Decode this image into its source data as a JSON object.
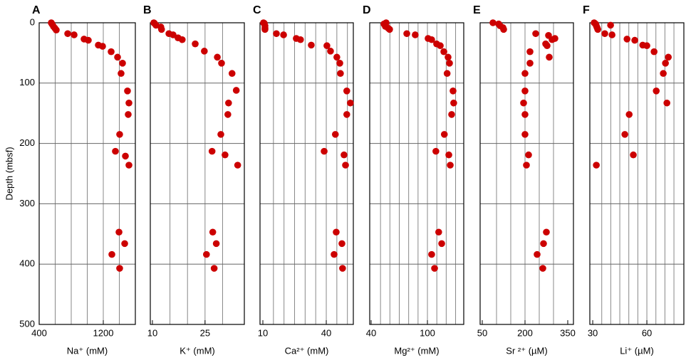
{
  "chart_data": [
    {
      "type": "scatter",
      "label": "A",
      "xlabel": "Na⁺ (mM)",
      "ylabel": "Depth (mbsf)",
      "color": "#cc0000",
      "y_inverted": true,
      "xlim": [
        400,
        1600
      ],
      "xticks": [
        400,
        1200
      ],
      "xgrid": [
        600,
        800,
        1000,
        1200,
        1400
      ],
      "ylim": [
        0,
        500
      ],
      "yticks": [
        0,
        100,
        200,
        300,
        400,
        500
      ],
      "x": [
        551,
        560,
        578,
        596,
        613,
        756,
        836,
        960,
        1013,
        1138,
        1191,
        1298,
        1378,
        1440,
        1422,
        1502,
        1520,
        1511,
        1404,
        1351,
        1476,
        1520,
        1396,
        1467,
        1307,
        1404
      ],
      "values": [
        0,
        2,
        6,
        9,
        12,
        18,
        20,
        27,
        29,
        37,
        39,
        48,
        57,
        67,
        84,
        113,
        133,
        152,
        185,
        213,
        221,
        236,
        347,
        366,
        384,
        407
      ]
    },
    {
      "type": "scatter",
      "label": "B",
      "xlabel": "K⁺ (mM)",
      "color": "#cc0000",
      "y_inverted": true,
      "xlim": [
        9.4,
        36.2
      ],
      "xticks": [
        10,
        25
      ],
      "xgrid": [
        15,
        20,
        25,
        30
      ],
      "ylim": [
        0,
        500
      ],
      "yticks": [
        0,
        100,
        200,
        300,
        400,
        500
      ],
      "x": [
        10.4,
        10.6,
        11.0,
        12.4,
        12.6,
        14.7,
        15.9,
        17.3,
        18.5,
        22.2,
        24.8,
        28.5,
        29.7,
        32.7,
        33.9,
        31.7,
        31.5,
        29.5,
        27.0,
        30.7,
        34.3,
        27.2,
        28.2,
        25.4,
        27.6
      ],
      "values": [
        0,
        1,
        4,
        7,
        11,
        18,
        20,
        25,
        28,
        35,
        47,
        57,
        67,
        84,
        112,
        133,
        152,
        185,
        213,
        219,
        236,
        347,
        366,
        384,
        407
      ]
    },
    {
      "type": "scatter",
      "label": "C",
      "xlabel": "Ca²⁺ (mM)",
      "color": "#cc0000",
      "y_inverted": true,
      "xlim": [
        8.65,
        52.8
      ],
      "xticks": [
        10,
        40
      ],
      "xgrid": [
        15,
        20,
        25,
        30,
        35,
        40,
        45,
        50
      ],
      "ylim": [
        0,
        500
      ],
      "yticks": [
        0,
        100,
        200,
        300,
        400,
        500
      ],
      "x": [
        10.3,
        10.7,
        11.0,
        11.0,
        11.0,
        16.4,
        19.8,
        25.8,
        27.8,
        32.9,
        40.3,
        42.0,
        45.0,
        46.4,
        46.7,
        49.7,
        51.4,
        49.7,
        44.3,
        39.0,
        48.4,
        49.1,
        44.7,
        47.4,
        43.7,
        47.7
      ],
      "values": [
        0,
        1,
        5,
        9,
        11,
        18,
        20,
        26,
        28,
        37,
        38,
        47,
        57,
        67,
        84,
        113,
        133,
        152,
        185,
        213,
        219,
        236,
        347,
        366,
        384,
        407
      ]
    },
    {
      "type": "scatter",
      "label": "D",
      "xlabel": "Mg²⁺ (mM)",
      "color": "#cc0000",
      "y_inverted": true,
      "xlim": [
        38.5,
        138.7
      ],
      "xticks": [
        40,
        100
      ],
      "xgrid": [
        50,
        60,
        70,
        80,
        90,
        100,
        110,
        120,
        130
      ],
      "ylim": [
        0,
        500
      ],
      "yticks": [
        0,
        100,
        200,
        300,
        400,
        500
      ],
      "x": [
        56,
        53.7,
        55.2,
        58.2,
        59.7,
        78,
        87,
        100.7,
        104.5,
        109.8,
        113.7,
        117.5,
        122,
        123.5,
        121,
        127.3,
        128,
        125.8,
        118,
        109,
        122.8,
        124.3,
        112,
        115.2,
        104.5,
        107.6
      ],
      "values": [
        0,
        2,
        6,
        9,
        11,
        18,
        20,
        26,
        28,
        35,
        38,
        48,
        57,
        67,
        84,
        113,
        133,
        152,
        185,
        213,
        219,
        236,
        347,
        366,
        384,
        407
      ]
    },
    {
      "type": "scatter",
      "label": "E",
      "xlabel": "Sr ²⁺ (µM)",
      "color": "#cc0000",
      "y_inverted": true,
      "xlim": [
        42.5,
        370
      ],
      "xticks": [
        50,
        200,
        350
      ],
      "xgrid": [
        100,
        150,
        200,
        250,
        300
      ],
      "ylim": [
        0,
        500
      ],
      "yticks": [
        0,
        100,
        200,
        300,
        400,
        500
      ],
      "x": [
        87.5,
        107.5,
        112.5,
        122.5,
        125,
        237.5,
        217.5,
        217.5,
        277.5,
        282.5,
        295,
        305,
        272.5,
        285,
        200,
        200,
        195,
        200,
        200,
        212.5,
        205,
        275,
        265,
        242.5,
        262.5
      ],
      "values": [
        0,
        2,
        5,
        8,
        11,
        18,
        48,
        67,
        38,
        21,
        28,
        26,
        35,
        57,
        84,
        113,
        133,
        152,
        185,
        219,
        236,
        347,
        366,
        384,
        407
      ]
    },
    {
      "type": "scatter",
      "label": "F",
      "xlabel": "Li⁺ (µM)",
      "color": "#cc0000",
      "y_inverted": true,
      "xlim": [
        28.4,
        80.5
      ],
      "xticks": [
        30,
        60
      ],
      "xgrid": [
        35,
        40,
        45,
        50,
        55,
        60,
        65,
        70,
        75
      ],
      "ylim": [
        0,
        500
      ],
      "yticks": [
        0,
        100,
        200,
        300,
        400,
        500
      ],
      "x": [
        30.8,
        31.6,
        32,
        32.4,
        32.8,
        39.9,
        36.7,
        40.7,
        49,
        53.3,
        57.7,
        60,
        64,
        71.9,
        70.3,
        69.1,
        65.2,
        71.1,
        50.2,
        47.8,
        52.5,
        32
      ],
      "values": [
        0,
        2,
        5,
        8,
        11,
        4,
        18,
        20,
        27,
        29,
        37,
        38,
        48,
        57,
        67,
        84,
        113,
        133,
        152,
        185,
        219,
        236
      ]
    }
  ]
}
